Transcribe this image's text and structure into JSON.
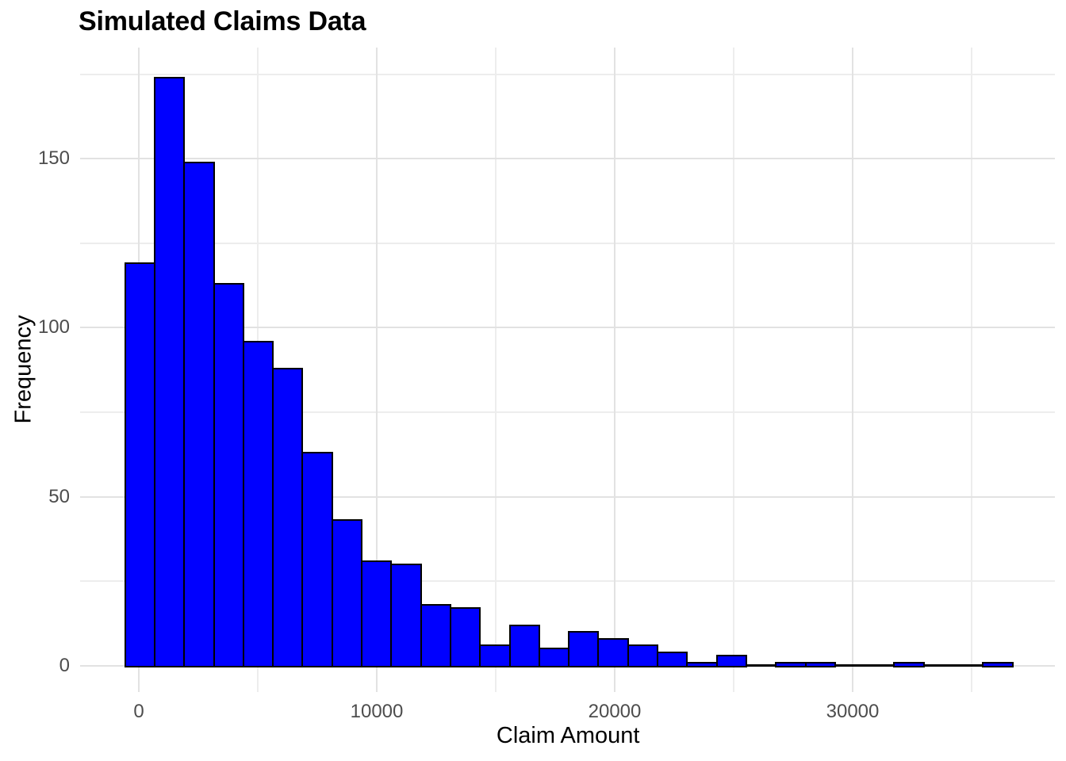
{
  "chart_data": {
    "type": "bar",
    "subtype": "histogram",
    "title": "Simulated Claims Data",
    "xlabel": "Claim Amount",
    "ylabel": "Frequency",
    "n_total": 1000,
    "bin_start": -610,
    "bin_width": 1243.3,
    "values": [
      119,
      174,
      149,
      113,
      96,
      88,
      63,
      43,
      31,
      30,
      18,
      17,
      6,
      12,
      5,
      10,
      8,
      6,
      4,
      1,
      3,
      0,
      1,
      1,
      0,
      0,
      1,
      0,
      0,
      1
    ],
    "xlim": [
      -2467,
      38500
    ],
    "ylim": [
      -7.8,
      182.9
    ],
    "grid": "on",
    "legend": "none",
    "x_axis": {
      "ticks": [
        {
          "label": "0",
          "value": 0
        },
        {
          "label": "10000",
          "value": 10000
        },
        {
          "label": "20000",
          "value": 20000
        },
        {
          "label": "30000",
          "value": 30000
        }
      ],
      "minor_gridlines": [
        5000,
        15000,
        25000,
        35000
      ]
    },
    "y_axis": {
      "ticks": [
        {
          "label": "0",
          "value": 0
        },
        {
          "label": "50",
          "value": 50
        },
        {
          "label": "100",
          "value": 100
        },
        {
          "label": "150",
          "value": 150
        }
      ],
      "minor_gridlines": [
        25,
        75,
        125,
        175
      ]
    },
    "colors": {
      "bar_fill": "#0000FF",
      "bar_stroke": "#000000",
      "grid_major": "#E2E2E2",
      "grid_minor": "#EDEDED",
      "tick_label": "#4D4D4D",
      "title": "#000000",
      "background": "#FFFFFF"
    }
  }
}
